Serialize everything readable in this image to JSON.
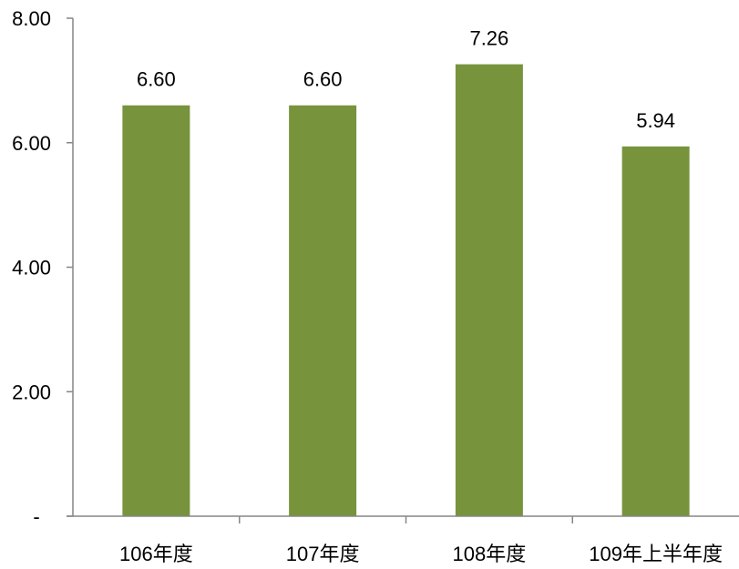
{
  "chart_data": {
    "type": "bar",
    "categories": [
      "106年度",
      "107年度",
      "108年度",
      "109年上半年度"
    ],
    "values": [
      6.6,
      6.6,
      7.26,
      5.94
    ],
    "value_labels": [
      "6.60",
      "6.60",
      "7.26",
      "5.94"
    ],
    "title": "",
    "xlabel": "",
    "ylabel": "",
    "ylim": [
      0,
      8
    ],
    "yticks": [
      0,
      2,
      4,
      6,
      8
    ],
    "ytick_labels": [
      "-",
      "2.00",
      "4.00",
      "6.00",
      "8.00"
    ],
    "grid": false,
    "legend": "none",
    "colors": {
      "bar": "#77933C",
      "axis": "#868686"
    }
  }
}
